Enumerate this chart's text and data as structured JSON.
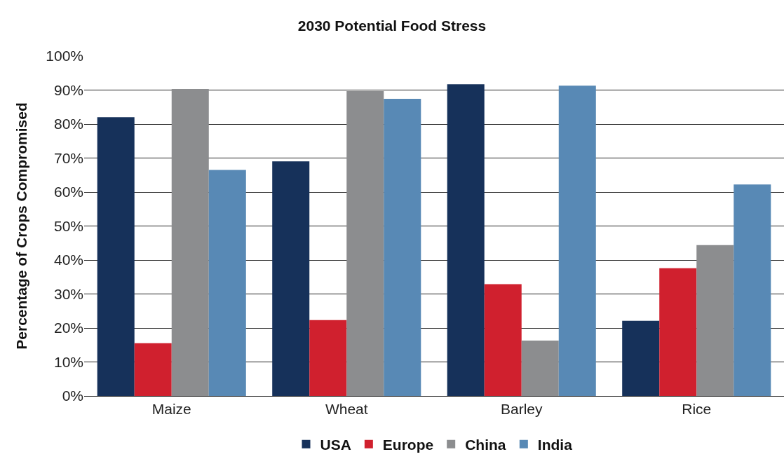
{
  "chart_data": {
    "type": "bar",
    "title": "2030 Potential Food Stress",
    "ylabel": "Percentage of Crops Compromised",
    "categories": [
      "Maize",
      "Wheat",
      "Barley",
      "Rice"
    ],
    "series": [
      {
        "name": "USA",
        "color": "#16315a",
        "values": [
          82,
          69,
          91.7,
          22.1
        ]
      },
      {
        "name": "Europe",
        "color": "#d0202e",
        "values": [
          15.5,
          22.3,
          32.9,
          37.6
        ]
      },
      {
        "name": "China",
        "color": "#8c8d8f",
        "values": [
          90.3,
          89.7,
          16.3,
          44.4
        ]
      },
      {
        "name": "India",
        "color": "#5889b5",
        "values": [
          66.5,
          87.4,
          91.3,
          62.2
        ]
      }
    ],
    "ylim": [
      0,
      100
    ],
    "yticks": [
      {
        "value": 0,
        "label": "0%"
      },
      {
        "value": 10,
        "label": "10%"
      },
      {
        "value": 20,
        "label": "20%"
      },
      {
        "value": 30,
        "label": "30%"
      },
      {
        "value": 40,
        "label": "40%"
      },
      {
        "value": 50,
        "label": "50%"
      },
      {
        "value": 60,
        "label": "60%"
      },
      {
        "value": 70,
        "label": "70%"
      },
      {
        "value": 80,
        "label": "80%"
      },
      {
        "value": 90,
        "label": "90%"
      },
      {
        "value": 100,
        "label": "100%"
      }
    ],
    "grid": "y",
    "legend": "bottom"
  }
}
